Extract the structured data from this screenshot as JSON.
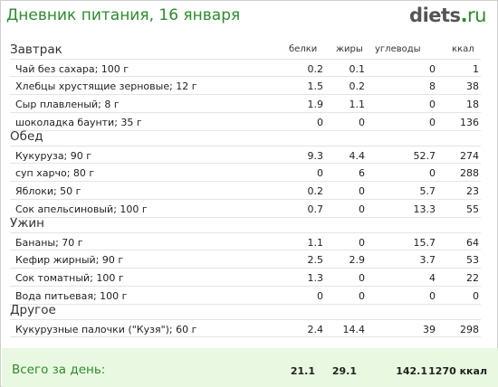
{
  "header": {
    "title": "Дневник питания, 16 января",
    "logo_main": "diets",
    "logo_dot": ".",
    "logo_ru": "ru"
  },
  "columns": {
    "protein": "белки",
    "fat": "жиры",
    "carbs": "углеводы",
    "kcal": "ккал"
  },
  "meals": [
    {
      "title": "Завтрак",
      "items": [
        {
          "name": "Чай без сахара; 100 г",
          "protein": "0.2",
          "fat": "0.1",
          "carbs": "0",
          "kcal": "1"
        },
        {
          "name": "Хлебцы хрустящие зерновые; 12 г",
          "protein": "1.5",
          "fat": "0.2",
          "carbs": "8",
          "kcal": "38"
        },
        {
          "name": "Сыр плавленый; 8 г",
          "protein": "1.9",
          "fat": "1.1",
          "carbs": "0",
          "kcal": "18"
        },
        {
          "name": "шоколадка баунти; 35 г",
          "protein": "0",
          "fat": "0",
          "carbs": "0",
          "kcal": "136"
        }
      ]
    },
    {
      "title": "Обед",
      "items": [
        {
          "name": "Кукуруза; 90 г",
          "protein": "9.3",
          "fat": "4.4",
          "carbs": "52.7",
          "kcal": "274"
        },
        {
          "name": "суп харчо; 80 г",
          "protein": "0",
          "fat": "6",
          "carbs": "0",
          "kcal": "288"
        },
        {
          "name": "Яблоки; 50 г",
          "protein": "0.2",
          "fat": "0",
          "carbs": "5.7",
          "kcal": "23"
        },
        {
          "name": "Сок апельсиновый; 100 г",
          "protein": "0.7",
          "fat": "0",
          "carbs": "13.3",
          "kcal": "55"
        }
      ]
    },
    {
      "title": "Ужин",
      "items": [
        {
          "name": "Бананы; 70 г",
          "protein": "1.1",
          "fat": "0",
          "carbs": "15.7",
          "kcal": "64"
        },
        {
          "name": "Кефир жирный; 90 г",
          "protein": "2.5",
          "fat": "2.9",
          "carbs": "3.7",
          "kcal": "53"
        },
        {
          "name": "Сок томатный; 100 г",
          "protein": "1.3",
          "fat": "0",
          "carbs": "4",
          "kcal": "22"
        },
        {
          "name": "Вода питьевая; 100 г",
          "protein": "0",
          "fat": "0",
          "carbs": "0",
          "kcal": "0"
        }
      ]
    },
    {
      "title": "Другое",
      "items": [
        {
          "name": "Кукурузные палочки (\"Кузя\"); 60 г",
          "protein": "2.4",
          "fat": "14.4",
          "carbs": "39",
          "kcal": "298"
        }
      ]
    }
  ],
  "total": {
    "label": "Всего за день:",
    "protein": "21.1",
    "fat": "29.1",
    "carbs": "142.1",
    "kcal": "1270 ккал"
  },
  "colors": {
    "accent": "#2e8b2e",
    "total_bg": "#e9f9e1"
  }
}
